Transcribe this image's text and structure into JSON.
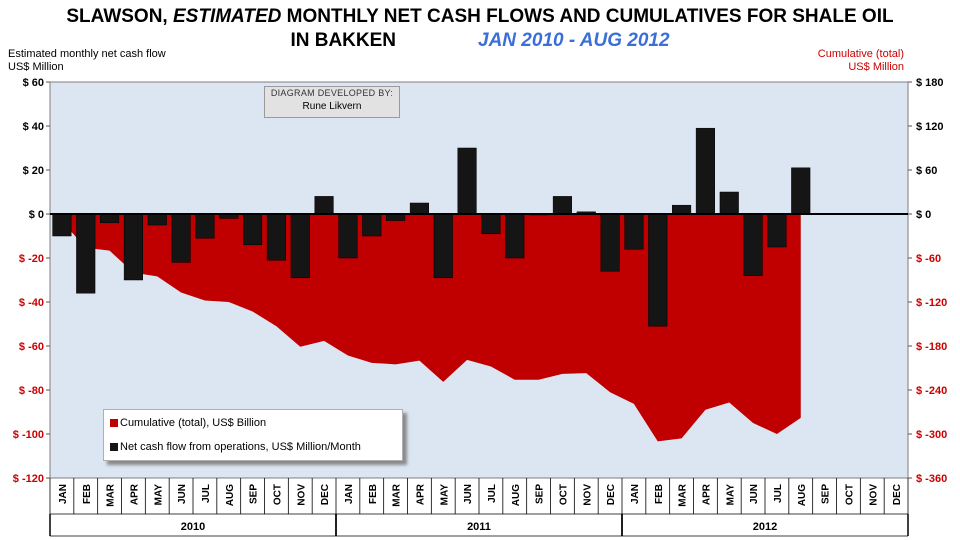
{
  "title": {
    "line1_prefix": "SLAWSON, ",
    "line1_em": "ESTIMATED",
    "line1_suffix": " MONTHLY NET CASH FLOWS AND CUMULATIVES FOR SHALE OIL",
    "line2": "IN BAKKEN",
    "period": "JAN 2010  - AUG 2012"
  },
  "left_axis_title": {
    "line1": "Estimated monthly net cash flow",
    "line2": "US$ Million"
  },
  "right_axis_title": {
    "line1": "Cumulative (total)",
    "line2": "US$ Million"
  },
  "credit": {
    "line1": "DIAGRAM DEVELOPED BY:",
    "line2": "Rune Likvern"
  },
  "legend": {
    "items": [
      {
        "label": "Cumulative (total), US$ Billion",
        "color": "#c00000"
      },
      {
        "label": "Net cash flow from operations,  US$ Million/Month",
        "color": "#151515"
      }
    ]
  },
  "colors": {
    "plot_bg": "#dce6f2",
    "cumulative": "#c00000",
    "bars": "#151515",
    "right_axis_text": "#cc0000"
  },
  "chart_data": {
    "type": "bar",
    "categories": [
      "JAN",
      "FEB",
      "MAR",
      "APR",
      "MAY",
      "JUN",
      "JUL",
      "AUG",
      "SEP",
      "OCT",
      "NOV",
      "DEC",
      "JAN",
      "FEB",
      "MAR",
      "APR",
      "MAY",
      "JUN",
      "JUL",
      "AUG",
      "SEP",
      "OCT",
      "NOV",
      "DEC",
      "JAN",
      "FEB",
      "MAR",
      "APR",
      "MAY",
      "JUN",
      "JUL",
      "AUG",
      "SEP",
      "OCT",
      "NOV",
      "DEC"
    ],
    "years": [
      {
        "label": "2010",
        "start": 0,
        "count": 12
      },
      {
        "label": "2011",
        "start": 12,
        "count": 12
      },
      {
        "label": "2012",
        "start": 24,
        "count": 12
      }
    ],
    "series": [
      {
        "name": "Net cash flow from operations,  US$ Million/Month",
        "axis": "left",
        "kind": "bar",
        "values": [
          -10,
          -36,
          -4,
          -30,
          -5,
          -22,
          -11,
          -2,
          -14,
          -21,
          -29,
          8,
          -20,
          -10,
          -3,
          5,
          -29,
          30,
          -9,
          -20,
          0,
          8,
          1,
          -26,
          -16,
          -51,
          4,
          39,
          10,
          -28,
          -15,
          21,
          null,
          null,
          null,
          null
        ]
      },
      {
        "name": "Cumulative (total), US$ Billion",
        "axis": "right",
        "kind": "area",
        "values": [
          -10,
          -46,
          -50,
          -80,
          -85,
          -107,
          -118,
          -120,
          -133,
          -153,
          -181,
          -173,
          -193,
          -203,
          -205,
          -200,
          -229,
          -199,
          -208,
          -226,
          -226,
          -218,
          -217,
          -243,
          -259,
          -310,
          -306,
          -267,
          -257,
          -285,
          -300,
          -278,
          null,
          null,
          null,
          null
        ]
      }
    ],
    "left_axis": {
      "min": -120,
      "max": 60,
      "step": 20,
      "tick_labels": [
        "$ 60",
        "$ 40",
        "$ 20",
        "$ 0",
        "$ -20",
        "$ -40",
        "$ -60",
        "$ -80",
        "$ -100",
        "$ -120"
      ]
    },
    "right_axis": {
      "min": -360,
      "max": 180,
      "step": 60,
      "tick_labels": [
        "$ 180",
        "$ 120",
        "$ 60",
        "$ 0",
        "$ -60",
        "$ -120",
        "$ -180",
        "$ -240",
        "$ -300",
        "$ -360"
      ]
    },
    "grid": false,
    "legend_position": "bottom-left"
  }
}
